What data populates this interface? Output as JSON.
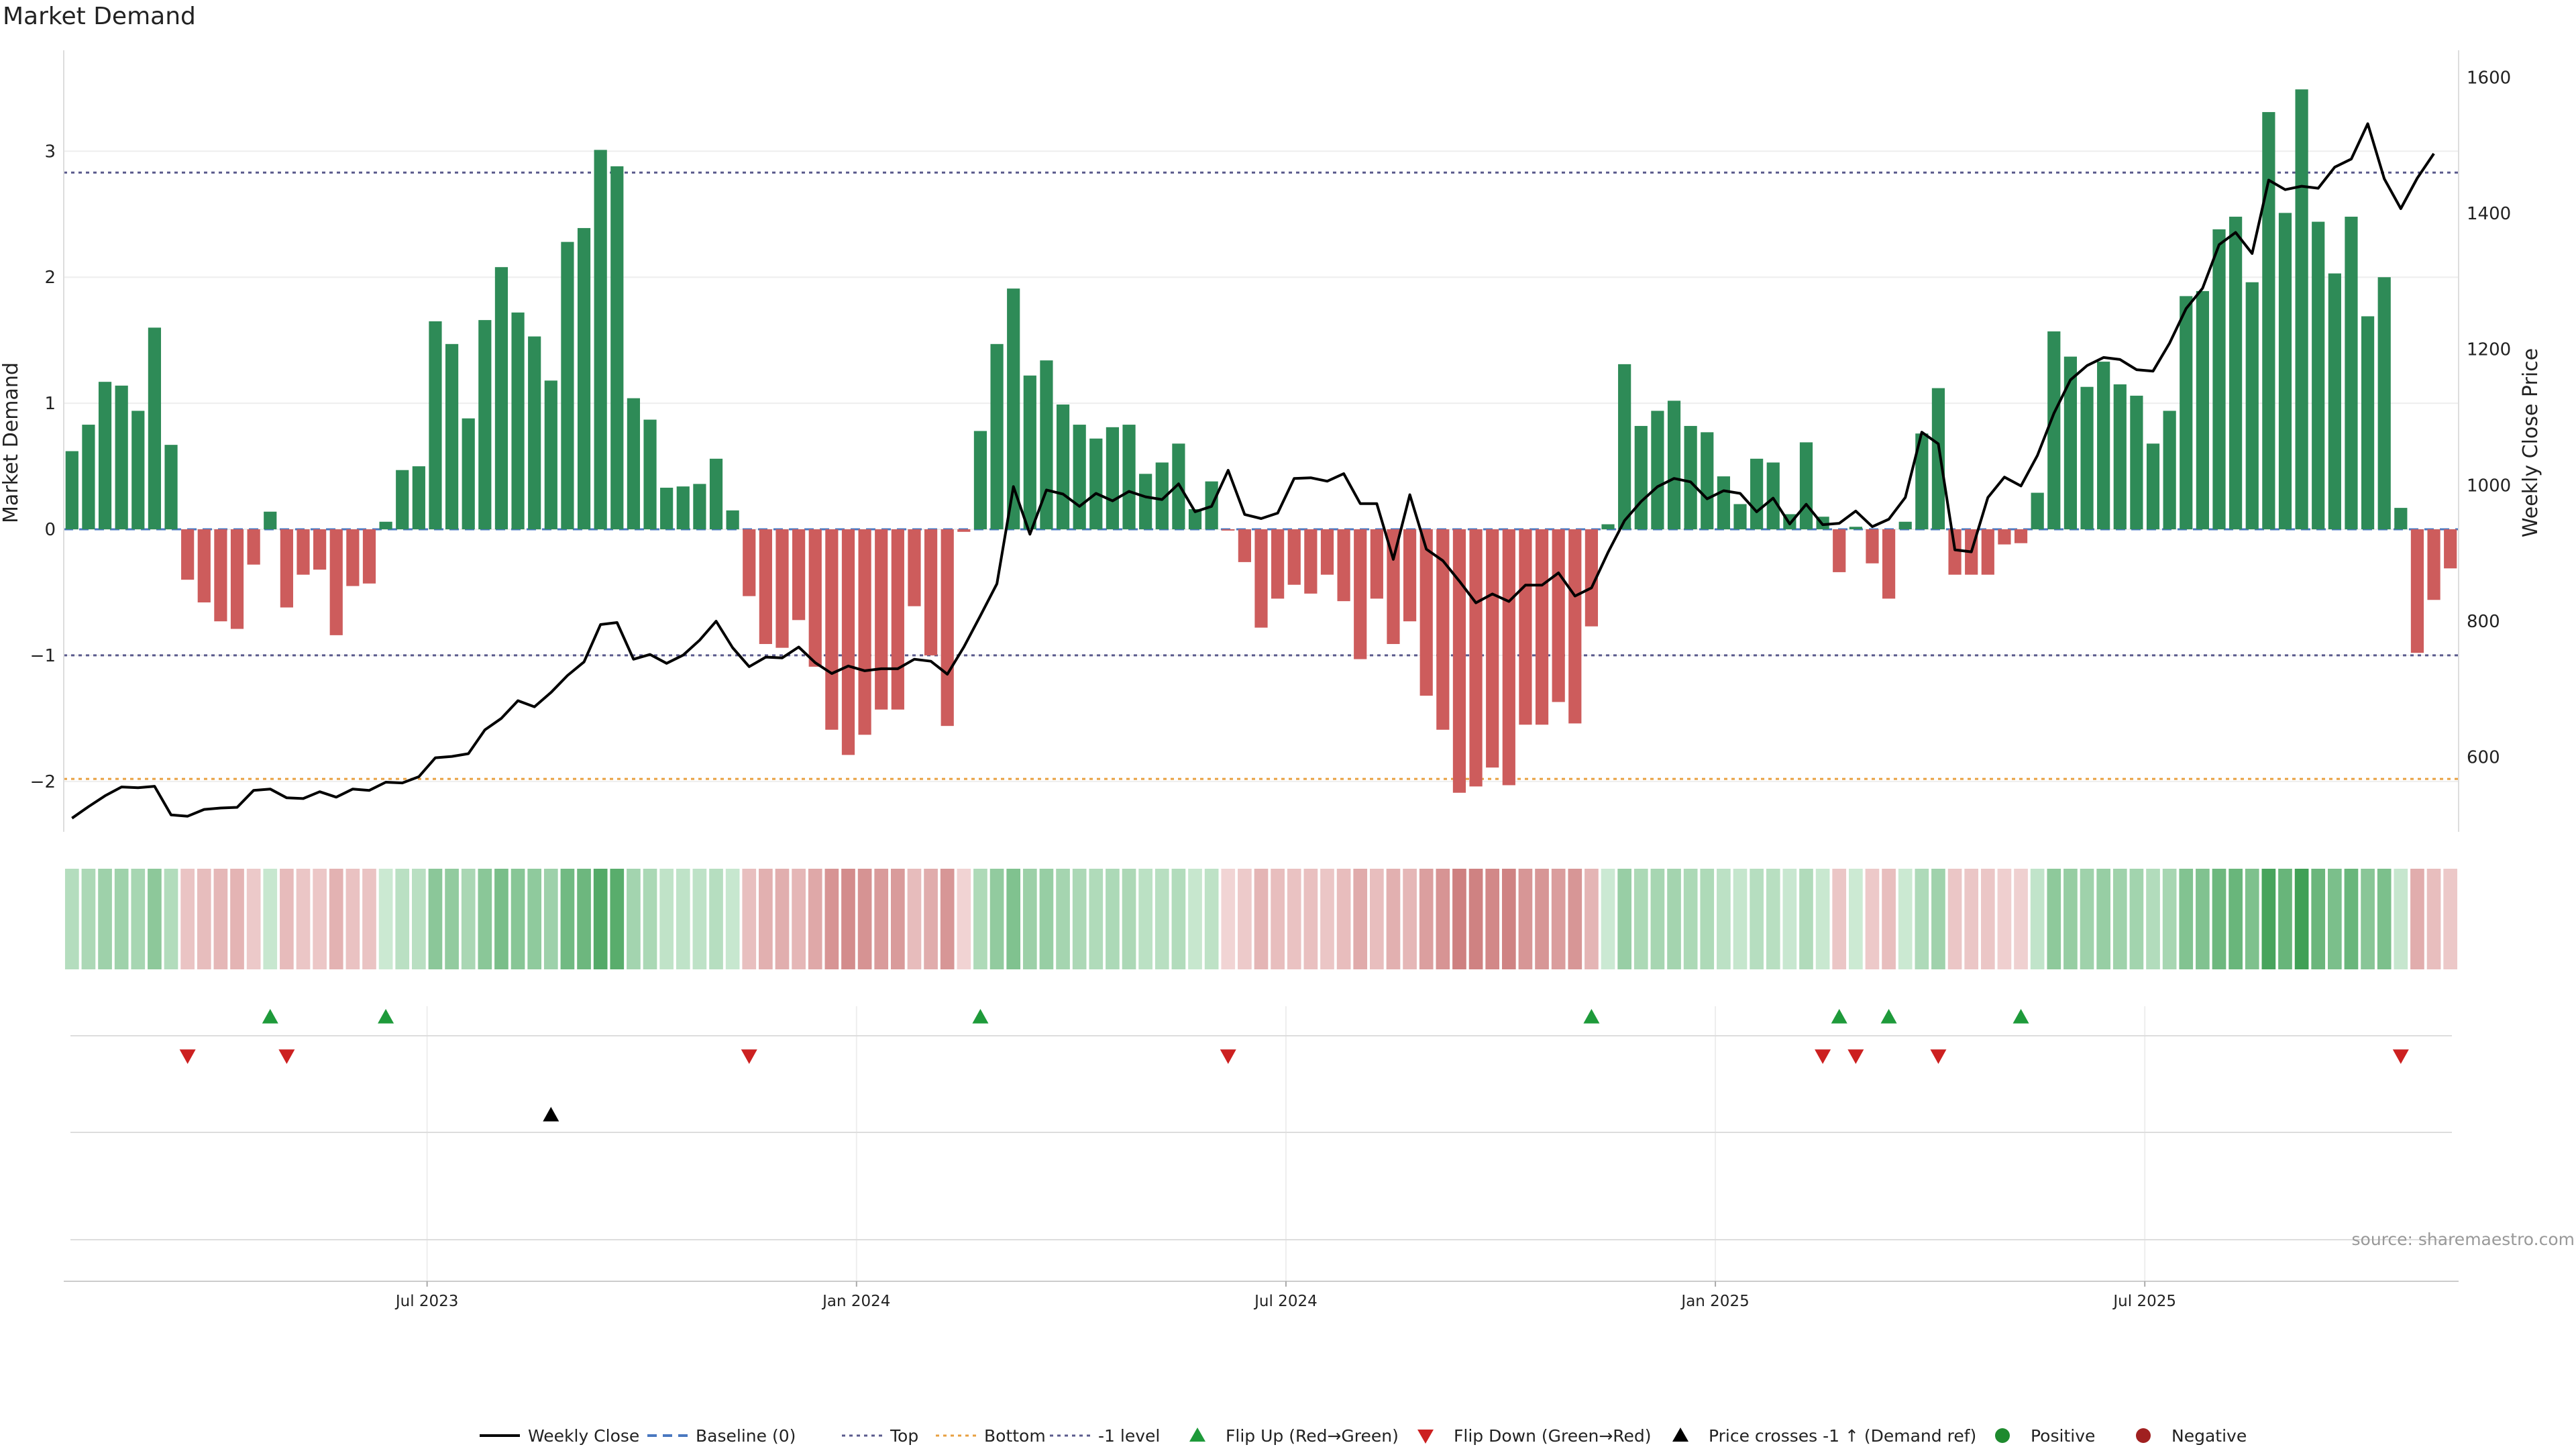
{
  "title": "Market Demand",
  "source_note": "source: sharemaestro.com",
  "chart_data": {
    "type": "bar",
    "title": "Market Demand",
    "ylabel": "Market Demand",
    "y2label": "Weekly Close Price",
    "ylim": [
      -2.4,
      3.8
    ],
    "y2lim": [
      490,
      1640
    ],
    "yticks": [
      "3",
      "2",
      "1",
      "0",
      "−1",
      "−2"
    ],
    "yticks_values": [
      3,
      2,
      1,
      0,
      -1,
      -2
    ],
    "y2ticks": [
      "1600",
      "1400",
      "1200",
      "1000",
      "800",
      "600"
    ],
    "y2ticks_values": [
      1600,
      1400,
      1200,
      1000,
      800,
      600
    ],
    "xticks": [
      "Jul 2023",
      "Jan 2024",
      "Jul 2024",
      "Jan 2025",
      "Jul 2025"
    ],
    "xticks_index": [
      22,
      48,
      74,
      100,
      126
    ],
    "reference_lines": [
      {
        "name": "Top",
        "value": 2.83,
        "color": "#5a5a8c"
      },
      {
        "name": "Bottom",
        "value": -1.98,
        "color": "#e8a040"
      },
      {
        "name": "-1 level",
        "value": -1.0,
        "color": "#5a5a8c"
      }
    ],
    "colors": {
      "positive": "#2e8b57",
      "negative": "#cd5c5c",
      "price": "#000000",
      "baseline": "#4a78c0",
      "flip_up": "#1e9a3a",
      "flip_down": "#cc2020"
    },
    "demand": [
      0.62,
      0.83,
      1.17,
      1.14,
      0.94,
      1.6,
      0.67,
      -0.4,
      -0.58,
      -0.73,
      -0.79,
      -0.28,
      0.14,
      -0.62,
      -0.36,
      -0.32,
      -0.84,
      -0.45,
      -0.43,
      0.06,
      0.47,
      0.5,
      1.65,
      1.47,
      0.88,
      1.66,
      2.08,
      1.72,
      1.53,
      1.18,
      2.28,
      2.39,
      3.01,
      2.88,
      1.04,
      0.87,
      0.33,
      0.34,
      0.36,
      0.56,
      0.15,
      -0.53,
      -0.91,
      -0.94,
      -0.72,
      -1.09,
      -1.59,
      -1.79,
      -1.63,
      -1.43,
      -1.43,
      -0.61,
      -1.0,
      -1.56,
      -0.02,
      0.78,
      1.47,
      1.91,
      1.22,
      1.34,
      0.99,
      0.83,
      0.72,
      0.81,
      0.83,
      0.44,
      0.53,
      0.68,
      0.16,
      0.38,
      -0.01,
      -0.26,
      -0.78,
      -0.55,
      -0.44,
      -0.51,
      -0.36,
      -0.57,
      -1.03,
      -0.55,
      -0.91,
      -0.73,
      -1.32,
      -1.59,
      -2.09,
      -2.04,
      -1.89,
      -2.03,
      -1.55,
      -1.55,
      -1.37,
      -1.54,
      -0.77,
      0.04,
      1.31,
      0.82,
      0.94,
      1.02,
      0.82,
      0.77,
      0.42,
      0.2,
      0.56,
      0.53,
      0.12,
      0.69,
      0.1,
      -0.34,
      0.02,
      -0.27,
      -0.55,
      0.06,
      0.76,
      1.12,
      -0.36,
      -0.36,
      -0.36,
      -0.12,
      -0.11,
      0.29,
      1.57,
      1.37,
      1.13,
      1.33,
      1.15,
      1.06,
      0.68,
      0.94,
      1.85,
      1.89,
      2.38,
      2.48,
      1.96,
      3.31,
      2.51,
      3.49,
      2.44,
      2.03,
      2.48,
      1.69,
      2.0,
      0.17,
      -0.98,
      -0.56,
      -0.31
    ],
    "price": [
      510,
      527,
      543,
      556,
      555,
      557,
      515,
      513,
      523,
      525,
      526,
      551,
      553,
      540,
      539,
      549,
      541,
      553,
      551,
      563,
      562,
      571,
      599,
      601,
      605,
      640,
      657,
      683,
      674,
      695,
      720,
      740,
      795,
      798,
      744,
      751,
      738,
      750,
      772,
      800,
      761,
      733,
      747,
      746,
      762,
      739,
      723,
      734,
      727,
      730,
      730,
      744,
      741,
      722,
      762,
      808,
      855,
      998,
      928,
      993,
      987,
      969,
      988,
      977,
      991,
      983,
      979,
      1002,
      961,
      969,
      1022,
      957,
      951,
      959,
      1010,
      1011,
      1006,
      1017,
      973,
      973,
      891,
      986,
      906,
      889,
      859,
      827,
      840,
      829,
      853,
      853,
      871,
      837,
      849,
      901,
      948,
      976,
      998,
      1010,
      1005,
      980,
      992,
      988,
      961,
      981,
      943,
      972,
      942,
      944,
      962,
      939,
      950,
      982,
      1078,
      1061,
      905,
      902,
      982,
      1012,
      999,
      1044,
      1106,
      1155,
      1176,
      1188,
      1185,
      1170,
      1168,
      1209,
      1260,
      1290,
      1354,
      1372,
      1341,
      1449,
      1435,
      1440,
      1437,
      1468,
      1480,
      1532,
      1451,
      1407,
      1452,
      1488
    ],
    "flip_up_index": [
      12,
      19,
      55,
      92,
      107,
      110,
      118
    ],
    "flip_down_index": [
      7,
      13,
      41,
      70,
      106,
      108,
      113,
      141
    ],
    "price_cross_index": [
      29
    ],
    "legend": [
      "Weekly Close",
      "Baseline (0)",
      "Top",
      "Bottom",
      "-1 level",
      "Flip Up (Red→Green)",
      "Flip Down (Green→Red)",
      "Price crosses -1 ↑ (Demand ref)",
      "Positive",
      "Negative"
    ],
    "legend_placement": "bottom-center"
  }
}
